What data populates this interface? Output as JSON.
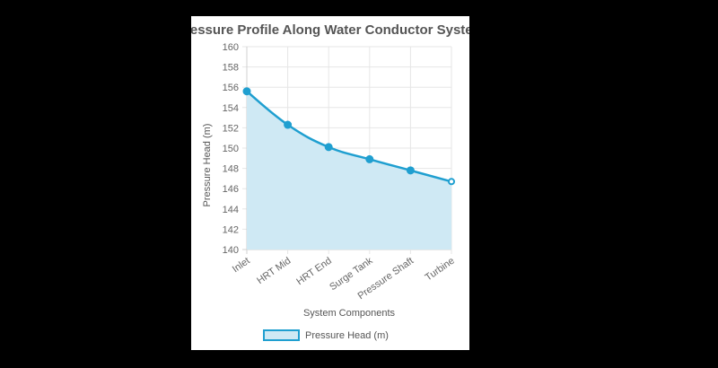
{
  "chart_data": {
    "type": "area",
    "title": "Pressure Profile Along Water Conductor System",
    "xlabel": "System Components",
    "ylabel": "Pressure Head (m)",
    "categories": [
      "Inlet",
      "HRT Mid",
      "HRT End",
      "Surge Tank",
      "Pressure Shaft",
      "Turbine"
    ],
    "series": [
      {
        "name": "Pressure Head (m)",
        "values": [
          155.6,
          152.3,
          150.1,
          148.9,
          147.8,
          146.7
        ]
      }
    ],
    "ylim": [
      140,
      160
    ],
    "yticks": [
      140,
      142,
      144,
      146,
      148,
      150,
      152,
      154,
      156,
      158,
      160
    ],
    "grid": true,
    "legend": "bottom",
    "colors": {
      "line": "#1f9fd0",
      "fill": "#cfe9f4",
      "grid": "#e6e6e6",
      "axis": "#d0d0d0"
    }
  }
}
